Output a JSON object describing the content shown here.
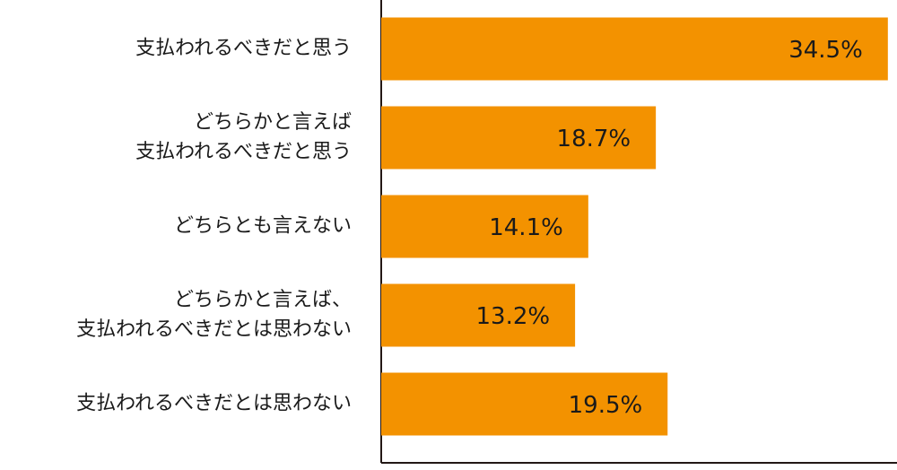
{
  "chart_data": {
    "type": "bar",
    "orientation": "horizontal",
    "categories": [
      [
        "支払われるべきだと思う"
      ],
      [
        "どちらかと言えば",
        "支払われるべきだと思う"
      ],
      [
        "どちらとも言えない"
      ],
      [
        "どちらかと言えば、",
        "支払われるべきだとは思わない"
      ],
      [
        "支払われるべきだとは思わない"
      ]
    ],
    "values": [
      34.5,
      18.7,
      14.1,
      13.2,
      19.5
    ],
    "value_labels": [
      "34.5%",
      "18.7%",
      "14.1%",
      "13.2%",
      "19.5%"
    ],
    "color": "#f39200",
    "xlim": [
      0,
      35
    ]
  }
}
